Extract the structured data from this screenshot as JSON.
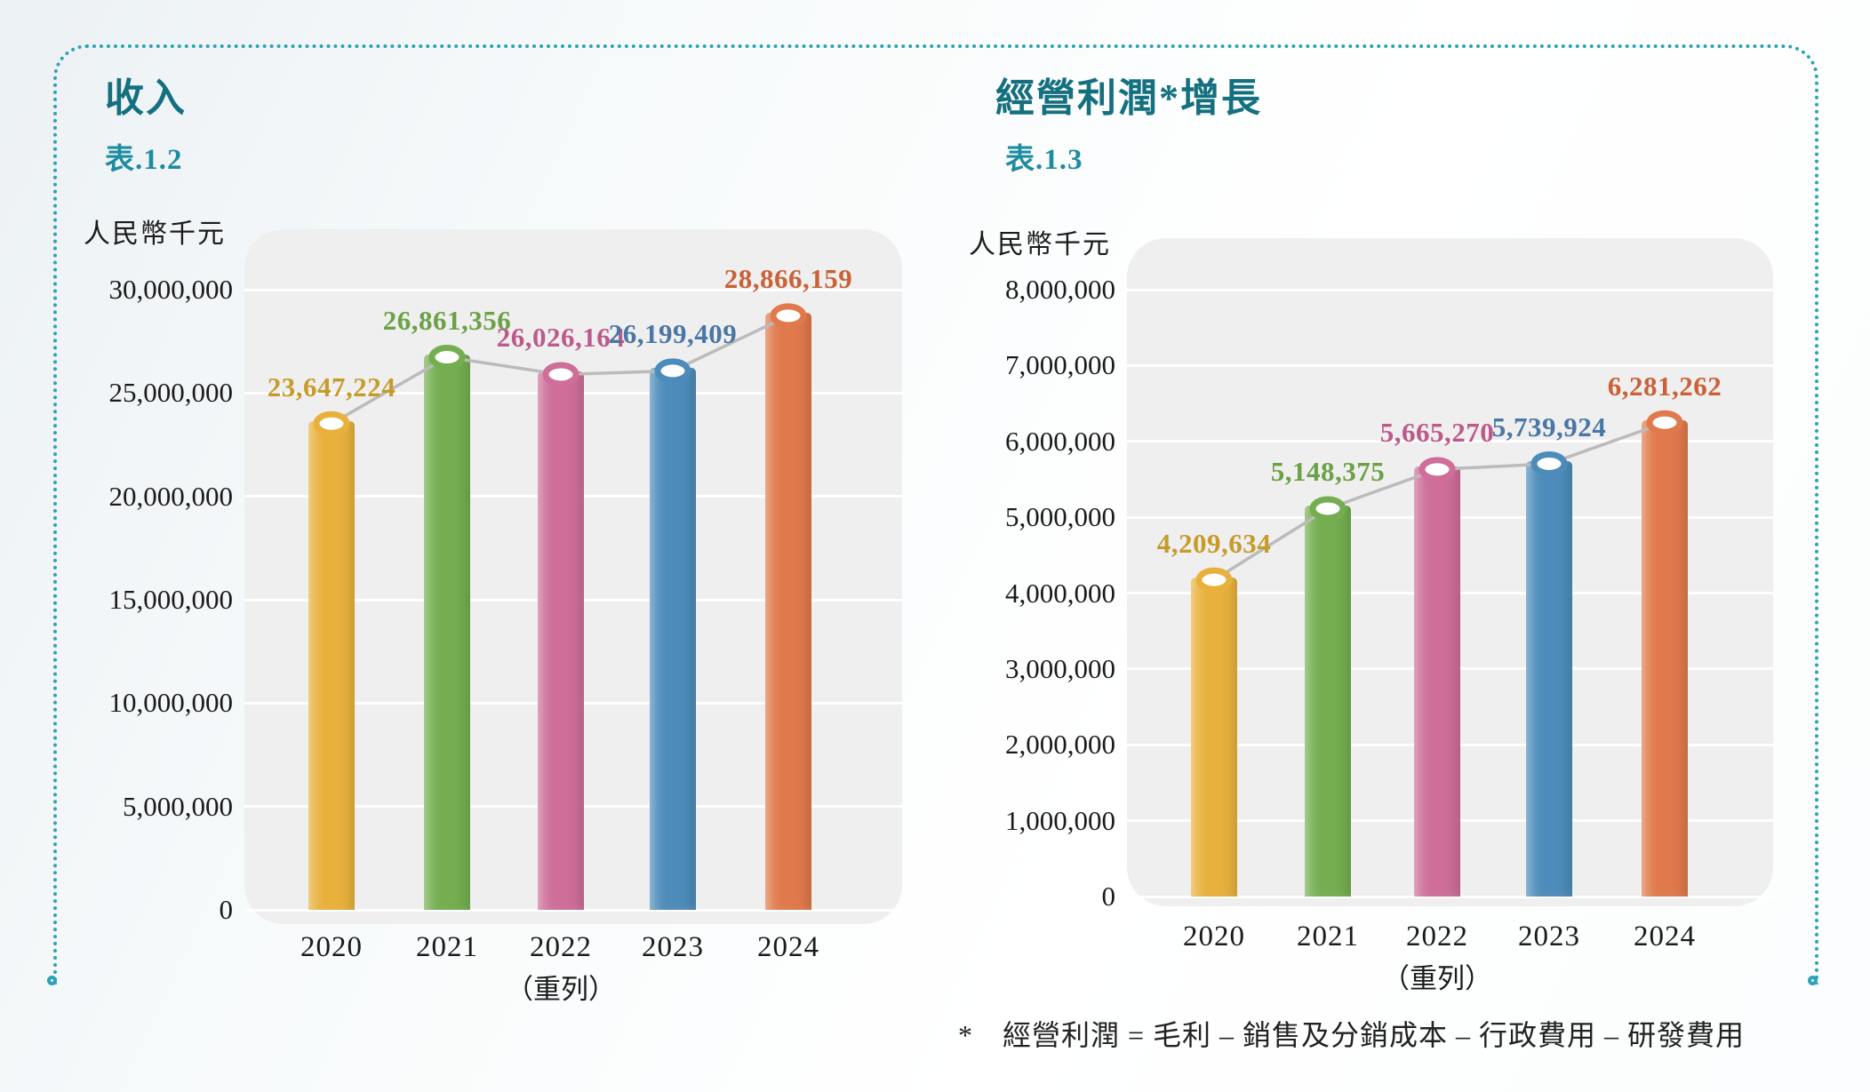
{
  "page": {
    "frame_color": "#2AA3B8",
    "title_color": "#14707F",
    "subtitle_color": "#1E8CA0",
    "footnote": "*　經營利潤 = 毛利 – 銷售及分銷成本 – 行政費用 – 研發費用"
  },
  "chart_data": [
    {
      "type": "bar",
      "title": "收入",
      "subtitle": "表.1.2",
      "unit_label": "人民幣千元",
      "categories": [
        "2020",
        "2021",
        "2022",
        "2023",
        "2024"
      ],
      "category_sublabels": [
        "",
        "",
        "（重列）",
        "",
        ""
      ],
      "values": [
        23647224,
        26861356,
        26026164,
        26199409,
        28866159
      ],
      "value_labels": [
        "23,647,224",
        "26,861,356",
        "26,026,164",
        "26,199,409",
        "28,866,159"
      ],
      "ylim": [
        0,
        30000000
      ],
      "ytick_step": 5000000,
      "ytick_labels": [
        "0",
        "5,000,000",
        "10,000,000",
        "15,000,000",
        "20,000,000",
        "25,000,000",
        "30,000,000"
      ],
      "bar_colors": [
        "#E8B13C",
        "#74AE50",
        "#CE6E99",
        "#4D8CBA",
        "#E0794B"
      ],
      "label_colors": [
        "#C79B2B",
        "#6CA247",
        "#BC5B8A",
        "#4B77A4",
        "#C96238"
      ],
      "plot_bg": "#EFEFEF",
      "grid_color": "#FFFFFF",
      "line_color": "#BBBBBB",
      "grid": true,
      "legend": "none",
      "overlay": "line-with-ring-markers"
    },
    {
      "type": "bar",
      "title": "經營利潤*增長",
      "subtitle": "表.1.3",
      "unit_label": "人民幣千元",
      "categories": [
        "2020",
        "2021",
        "2022",
        "2023",
        "2024"
      ],
      "category_sublabels": [
        "",
        "",
        "（重列）",
        "",
        ""
      ],
      "values": [
        4209634,
        5148375,
        5665270,
        5739924,
        6281262
      ],
      "value_labels": [
        "4,209,634",
        "5,148,375",
        "5,665,270",
        "5,739,924",
        "6,281,262"
      ],
      "ylim": [
        0,
        8000000
      ],
      "ytick_step": 1000000,
      "ytick_labels": [
        "0",
        "1,000,000",
        "2,000,000",
        "3,000,000",
        "4,000,000",
        "5,000,000",
        "6,000,000",
        "7,000,000",
        "8,000,000"
      ],
      "bar_colors": [
        "#E8B13C",
        "#74AE50",
        "#CE6E99",
        "#4D8CBA",
        "#E0794B"
      ],
      "label_colors": [
        "#C79B2B",
        "#6CA247",
        "#BC5B8A",
        "#4B77A4",
        "#C96238"
      ],
      "plot_bg": "#EFEFEF",
      "grid_color": "#FFFFFF",
      "line_color": "#BBBBBB",
      "grid": true,
      "legend": "none",
      "overlay": "line-with-ring-markers"
    }
  ]
}
